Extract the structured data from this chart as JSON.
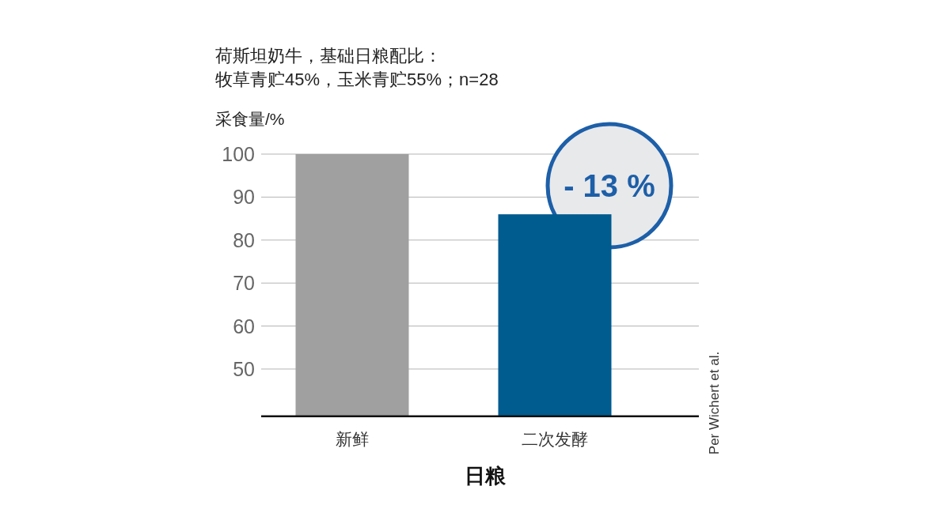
{
  "chart_data": {
    "type": "bar",
    "title": "荷斯坦奶牛，基础日粮配比：",
    "subtitle": "牧草青贮45%，玉米青贮55%；n=28",
    "ylabel": "采食量/%",
    "xlabel": "日粮",
    "categories": [
      "新鲜",
      "二次发酵"
    ],
    "values": [
      100,
      86
    ],
    "colors": [
      "#a0a0a0",
      "#005b8f"
    ],
    "ylim": [
      39,
      100
    ],
    "yticks": [
      50,
      60,
      70,
      80,
      90,
      100
    ],
    "grid": "y",
    "annotations": [
      "- 13 %",
      "Per Wichert et al."
    ]
  }
}
